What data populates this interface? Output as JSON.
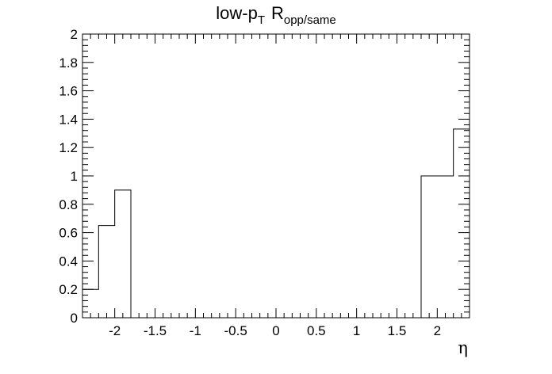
{
  "chart_data": {
    "type": "histogram",
    "title": {
      "main": "low-p",
      "main_sub": "T",
      "symbol": "R",
      "symbol_sub": "opp/same"
    },
    "xlabel": "η",
    "ylabel": "",
    "xlim": [
      -2.4,
      2.4
    ],
    "ylim": [
      0,
      2
    ],
    "grid": false,
    "legend": "none",
    "x_ticks": [
      -2,
      -1.5,
      -1,
      -0.5,
      0,
      0.5,
      1,
      1.5,
      2
    ],
    "x_tick_labels": [
      "-2",
      "-1.5",
      "-1",
      "-0.5",
      "0",
      "0.5",
      "1",
      "1.5",
      "2"
    ],
    "y_ticks": [
      0,
      0.2,
      0.4,
      0.6,
      0.8,
      1,
      1.2,
      1.4,
      1.6,
      1.8,
      2
    ],
    "y_tick_labels": [
      "0",
      "0.2",
      "0.4",
      "0.6",
      "0.8",
      "1",
      "1.2",
      "1.4",
      "1.6",
      "1.8",
      "2"
    ],
    "bins": [
      {
        "low": -2.4,
        "high": -2.2,
        "value": 0.2
      },
      {
        "low": -2.2,
        "high": -2.0,
        "value": 0.65
      },
      {
        "low": -2.0,
        "high": -1.8,
        "value": 0.9
      },
      {
        "low": -1.8,
        "high": 1.8,
        "value": 0
      },
      {
        "low": 1.8,
        "high": 2.2,
        "value": 1.0
      },
      {
        "low": 2.2,
        "high": 2.4,
        "value": 1.33
      }
    ],
    "line_color": "#000000"
  }
}
